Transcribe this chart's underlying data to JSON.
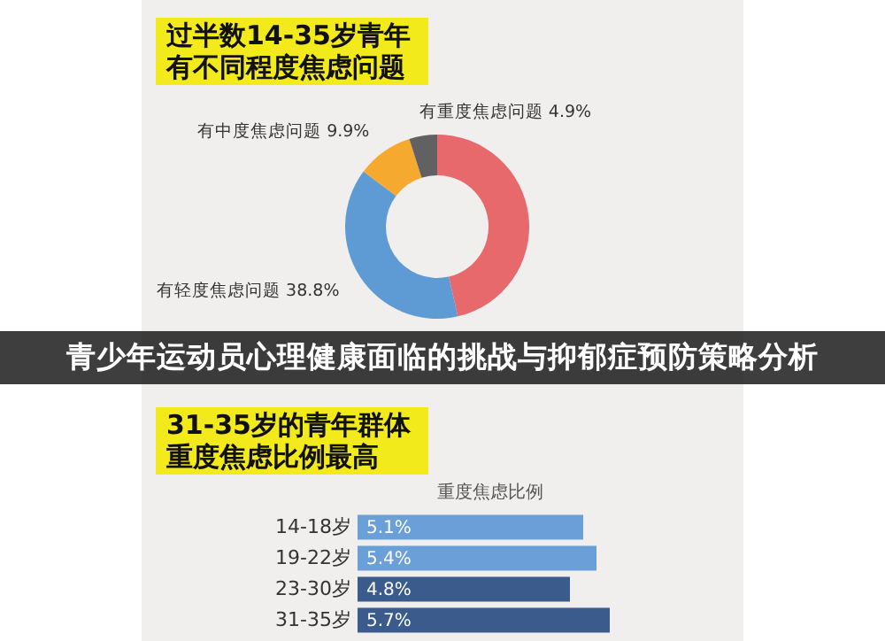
{
  "chart_data": [
    {
      "type": "donut",
      "title": "过半数14-35岁青年有不同程度焦虑问题",
      "categories": [
        null,
        "有轻度焦虑问题",
        "有中度焦虑问题",
        "有重度焦虑问题"
      ],
      "values": [
        46.4,
        38.8,
        9.9,
        4.9
      ],
      "colors": [
        "#e8696b",
        "#5e9bd4",
        "#f5a92e",
        "#616161"
      ],
      "value_labels": [
        null,
        "38.8%",
        "9.9%",
        "4.9%"
      ],
      "annotations": [
        "青少年运动员心理健康面临的挑战与抑郁症预防策略分析"
      ]
    },
    {
      "type": "bar",
      "orientation": "horizontal",
      "title": "31-35岁的青年群体重度焦虑比例最高",
      "subtitle": "重度焦虑比例",
      "categories": [
        "14-18岁",
        "19-22岁",
        "23-30岁",
        "31-35岁"
      ],
      "values": [
        5.1,
        5.4,
        4.8,
        5.7
      ],
      "colors": [
        "#6a9fd8",
        "#6a9fd8",
        "#3b5b8c",
        "#3b5b8c"
      ],
      "value_labels": [
        "5.1%",
        "5.4%",
        "4.8%",
        "5.7%"
      ]
    }
  ]
}
